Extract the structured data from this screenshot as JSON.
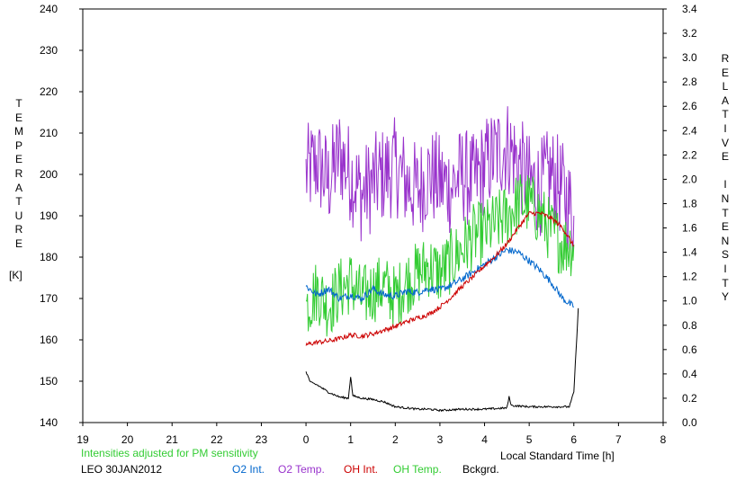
{
  "chart_data": {
    "type": "line",
    "xlabel": "Local Standard Time [h]",
    "x_ticks": [
      "19",
      "20",
      "21",
      "22",
      "23",
      "0",
      "1",
      "2",
      "3",
      "4",
      "5",
      "6",
      "7",
      "8"
    ],
    "xlim_hours": [
      19,
      32
    ],
    "ylabel_left": "TEMPERATURE",
    "ylabel_left_unit": "[K]",
    "ylim_left": [
      140,
      240
    ],
    "y_ticks_left": [
      "140",
      "150",
      "160",
      "170",
      "180",
      "190",
      "200",
      "210",
      "220",
      "230",
      "240"
    ],
    "ylabel_right": "RELATIVE INTENSITY",
    "ylim_right": [
      0.0,
      3.4
    ],
    "y_ticks_right": [
      "0.0",
      "0.2",
      "0.4",
      "0.6",
      "0.8",
      "1.0",
      "1.2",
      "1.4",
      "1.6",
      "1.8",
      "2.0",
      "2.2",
      "2.4",
      "2.6",
      "2.8",
      "3.0",
      "3.2",
      "3.4"
    ],
    "grid": false,
    "annotation": "Intensities adjusted for PM sensitivity",
    "station_date": "LEO 30JAN2012",
    "legend_labels": [
      "O2 Int.",
      "O2 Temp.",
      "OH Int.",
      "OH Temp.",
      "Bckgrd."
    ],
    "series": [
      {
        "name": "O2 Temp.",
        "axis": "left",
        "color": "#9933cc",
        "noise": 12,
        "x": [
          0.0,
          0.25,
          0.5,
          0.75,
          1.0,
          1.25,
          1.5,
          1.75,
          2.0,
          2.25,
          2.5,
          2.75,
          3.0,
          3.25,
          3.5,
          3.75,
          4.0,
          4.25,
          4.5,
          4.75,
          5.0,
          5.25,
          5.5,
          5.75,
          6.0
        ],
        "y": [
          200,
          203,
          198,
          205,
          200,
          195,
          198,
          200,
          202,
          198,
          196,
          200,
          198,
          197,
          200,
          198,
          202,
          205,
          207,
          203,
          198,
          197,
          200,
          196,
          190
        ]
      },
      {
        "name": "OH Temp.",
        "axis": "left",
        "color": "#33cc33",
        "noise": 8,
        "x": [
          0.0,
          0.25,
          0.5,
          0.75,
          1.0,
          1.25,
          1.5,
          1.75,
          2.0,
          2.25,
          2.5,
          2.75,
          3.0,
          3.25,
          3.5,
          3.75,
          4.0,
          4.25,
          4.5,
          4.75,
          5.0,
          5.25,
          5.5,
          5.75,
          6.0
        ],
        "y": [
          168,
          172,
          168,
          172,
          174,
          170,
          172,
          173,
          170,
          174,
          176,
          178,
          176,
          179,
          182,
          185,
          186,
          188,
          190,
          193,
          193,
          190,
          186,
          183,
          183
        ]
      },
      {
        "name": "O2 Int.",
        "axis": "right",
        "color": "#0066cc",
        "noise": 0.03,
        "x": [
          0.0,
          0.25,
          0.5,
          0.75,
          1.0,
          1.25,
          1.5,
          1.75,
          2.0,
          2.25,
          2.5,
          2.75,
          3.0,
          3.25,
          3.5,
          3.75,
          4.0,
          4.25,
          4.5,
          4.75,
          5.0,
          5.25,
          5.5,
          5.75,
          6.0
        ],
        "y": [
          1.12,
          1.05,
          1.1,
          1.02,
          1.05,
          1.02,
          1.1,
          1.05,
          1.04,
          1.08,
          1.07,
          1.1,
          1.09,
          1.13,
          1.18,
          1.24,
          1.3,
          1.36,
          1.42,
          1.4,
          1.33,
          1.25,
          1.15,
          1.02,
          0.95
        ]
      },
      {
        "name": "OH Int.",
        "axis": "right",
        "color": "#cc0000",
        "noise": 0.02,
        "x": [
          0.0,
          0.25,
          0.5,
          0.75,
          1.0,
          1.25,
          1.5,
          1.75,
          2.0,
          2.25,
          2.5,
          2.75,
          3.0,
          3.25,
          3.5,
          3.75,
          4.0,
          4.25,
          4.5,
          4.75,
          5.0,
          5.25,
          5.5,
          5.75,
          6.0
        ],
        "y": [
          0.64,
          0.66,
          0.67,
          0.69,
          0.72,
          0.71,
          0.73,
          0.76,
          0.79,
          0.83,
          0.86,
          0.89,
          0.95,
          1.03,
          1.12,
          1.2,
          1.29,
          1.37,
          1.47,
          1.6,
          1.72,
          1.72,
          1.68,
          1.6,
          1.45
        ]
      },
      {
        "name": "Bckgrd.",
        "axis": "right",
        "color": "#000000",
        "noise": 0.008,
        "x": [
          0.0,
          0.1,
          0.25,
          0.5,
          0.75,
          0.95,
          1.0,
          1.05,
          1.25,
          1.5,
          1.75,
          2.0,
          2.25,
          2.5,
          2.75,
          3.0,
          3.5,
          4.0,
          4.5,
          4.55,
          4.6,
          5.0,
          5.5,
          5.9,
          6.0,
          6.1
        ],
        "y": [
          0.42,
          0.33,
          0.31,
          0.25,
          0.21,
          0.2,
          0.38,
          0.22,
          0.2,
          0.19,
          0.17,
          0.13,
          0.12,
          0.11,
          0.11,
          0.1,
          0.11,
          0.11,
          0.12,
          0.21,
          0.14,
          0.13,
          0.13,
          0.13,
          0.25,
          0.94
        ]
      }
    ]
  },
  "colors": {
    "o2_int": "#0066cc",
    "o2_temp": "#9933cc",
    "oh_int": "#cc0000",
    "oh_temp": "#33cc33",
    "bckgrd": "#000000",
    "annotation": "#33cc33"
  }
}
